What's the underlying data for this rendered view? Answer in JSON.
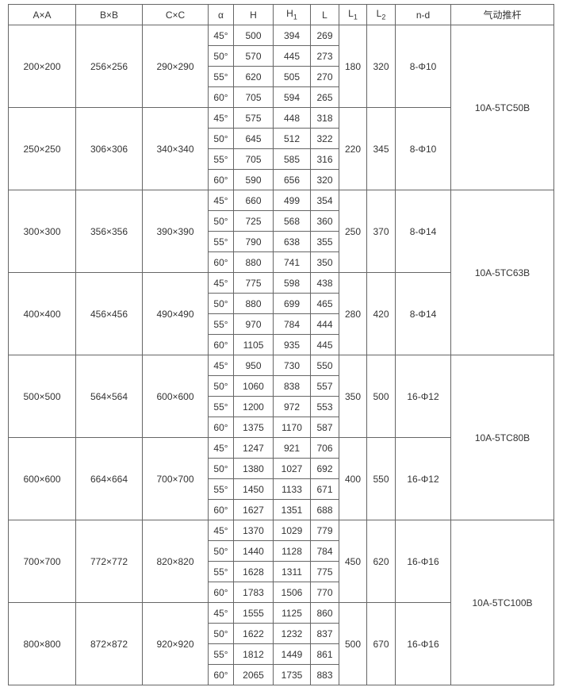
{
  "headers": {
    "a": "A×A",
    "b": "B×B",
    "c": "C×C",
    "alpha": "α",
    "h": "H",
    "h1": {
      "base": "H",
      "sub": "1"
    },
    "l": "L",
    "l1": {
      "base": "L",
      "sub": "1"
    },
    "l2": {
      "base": "L",
      "sub": "2"
    },
    "nd": "n-d",
    "actuator": "气动推杆"
  },
  "groups": [
    {
      "a": "200×200",
      "b": "256×256",
      "c": "290×290",
      "l1": "180",
      "l2": "320",
      "nd": "8-Φ10",
      "rows": [
        [
          "45°",
          "500",
          "394",
          "269"
        ],
        [
          "50°",
          "570",
          "445",
          "273"
        ],
        [
          "55°",
          "620",
          "505",
          "270"
        ],
        [
          "60°",
          "705",
          "594",
          "265"
        ]
      ]
    },
    {
      "a": "250×250",
      "b": "306×306",
      "c": "340×340",
      "l1": "220",
      "l2": "345",
      "nd": "8-Φ10",
      "rows": [
        [
          "45°",
          "575",
          "448",
          "318"
        ],
        [
          "50°",
          "645",
          "512",
          "322"
        ],
        [
          "55°",
          "705",
          "585",
          "316"
        ],
        [
          "60°",
          "590",
          "656",
          "320"
        ]
      ]
    },
    {
      "a": "300×300",
      "b": "356×356",
      "c": "390×390",
      "l1": "250",
      "l2": "370",
      "nd": "8-Φ14",
      "rows": [
        [
          "45°",
          "660",
          "499",
          "354"
        ],
        [
          "50°",
          "725",
          "568",
          "360"
        ],
        [
          "55°",
          "790",
          "638",
          "355"
        ],
        [
          "60°",
          "880",
          "741",
          "350"
        ]
      ]
    },
    {
      "a": "400×400",
      "b": "456×456",
      "c": "490×490",
      "l1": "280",
      "l2": "420",
      "nd": "8-Φ14",
      "rows": [
        [
          "45°",
          "775",
          "598",
          "438"
        ],
        [
          "50°",
          "880",
          "699",
          "465"
        ],
        [
          "55°",
          "970",
          "784",
          "444"
        ],
        [
          "60°",
          "1105",
          "935",
          "445"
        ]
      ]
    },
    {
      "a": "500×500",
      "b": "564×564",
      "c": "600×600",
      "l1": "350",
      "l2": "500",
      "nd": "16-Φ12",
      "rows": [
        [
          "45°",
          "950",
          "730",
          "550"
        ],
        [
          "50°",
          "1060",
          "838",
          "557"
        ],
        [
          "55°",
          "1200",
          "972",
          "553"
        ],
        [
          "60°",
          "1375",
          "1170",
          "587"
        ]
      ]
    },
    {
      "a": "600×600",
      "b": "664×664",
      "c": "700×700",
      "l1": "400",
      "l2": "550",
      "nd": "16-Φ12",
      "rows": [
        [
          "45°",
          "1247",
          "921",
          "706"
        ],
        [
          "50°",
          "1380",
          "1027",
          "692"
        ],
        [
          "55°",
          "1450",
          "1133",
          "671"
        ],
        [
          "60°",
          "1627",
          "1351",
          "688"
        ]
      ]
    },
    {
      "a": "700×700",
      "b": "772×772",
      "c": "820×820",
      "l1": "450",
      "l2": "620",
      "nd": "16-Φ16",
      "rows": [
        [
          "45°",
          "1370",
          "1029",
          "779"
        ],
        [
          "50°",
          "1440",
          "1128",
          "784"
        ],
        [
          "55°",
          "1628",
          "1311",
          "775"
        ],
        [
          "60°",
          "1783",
          "1506",
          "770"
        ]
      ]
    },
    {
      "a": "800×800",
      "b": "872×872",
      "c": "920×920",
      "l1": "500",
      "l2": "670",
      "nd": "16-Φ16",
      "rows": [
        [
          "45°",
          "1555",
          "1125",
          "860"
        ],
        [
          "50°",
          "1622",
          "1232",
          "837"
        ],
        [
          "55°",
          "1812",
          "1449",
          "861"
        ],
        [
          "60°",
          "2065",
          "1735",
          "883"
        ]
      ]
    }
  ],
  "actuators": [
    "10A-5TC50B",
    "10A-5TC63B",
    "10A-5TC80B",
    "10A-5TC100B"
  ]
}
